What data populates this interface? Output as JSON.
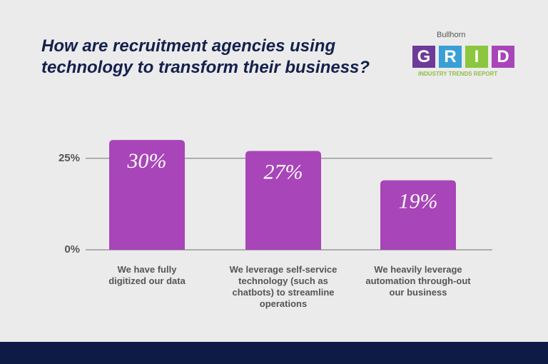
{
  "chart_data": {
    "type": "bar",
    "title": "How are recruitment agencies using technology to transform their business?",
    "categories": [
      "We have fully digitized our data",
      "We leverage self-service technology (such as chatbots) to streamline operations",
      "We heavily leverage automation through-out our business"
    ],
    "values": [
      30,
      27,
      19
    ],
    "value_labels": [
      "30%",
      "27%",
      "19%"
    ],
    "color": "#a845b8",
    "ylim": [
      0,
      39
    ],
    "yticks": [
      {
        "value": 0,
        "label": "0%"
      },
      {
        "value": 25,
        "label": "25%"
      }
    ],
    "grid": true
  },
  "logo": {
    "brand": "Bullhorn",
    "letters": [
      "G",
      "R",
      "I",
      "D"
    ],
    "tagline": "INDUSTRY TRENDS REPORT"
  }
}
